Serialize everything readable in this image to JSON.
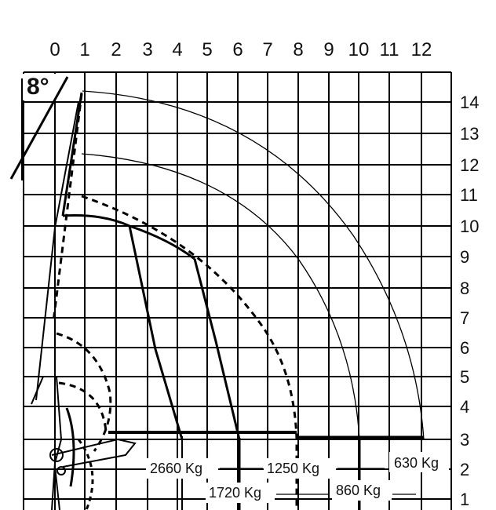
{
  "diagram": {
    "type": "crane-load-chart",
    "angle_label": "8°",
    "x_ticks": [
      "0",
      "1",
      "2",
      "3",
      "4",
      "5",
      "6",
      "7",
      "8",
      "9",
      "10",
      "11",
      "12"
    ],
    "y_ticks": [
      "14",
      "13",
      "12",
      "11",
      "10",
      "9",
      "8",
      "7",
      "6",
      "5",
      "4",
      "3",
      "2",
      "1"
    ],
    "load_labels": [
      "2660 Kg",
      "1720 Kg",
      "1250 Kg",
      "860 Kg",
      "630 Kg"
    ]
  },
  "chart_data": {
    "type": "crane-load-chart",
    "x_range": [
      0,
      12
    ],
    "y_range": [
      1,
      14
    ],
    "loads": [
      {
        "label": "2660 Kg",
        "max_reach": 4.2
      },
      {
        "label": "1720 Kg",
        "max_reach": 6.0
      },
      {
        "label": "1250 Kg",
        "max_reach": 8.0
      },
      {
        "label": "860 Kg",
        "max_reach": 10.0
      },
      {
        "label": "630 Kg",
        "max_reach": 12.0
      }
    ],
    "boom_angle_label": "8°"
  }
}
